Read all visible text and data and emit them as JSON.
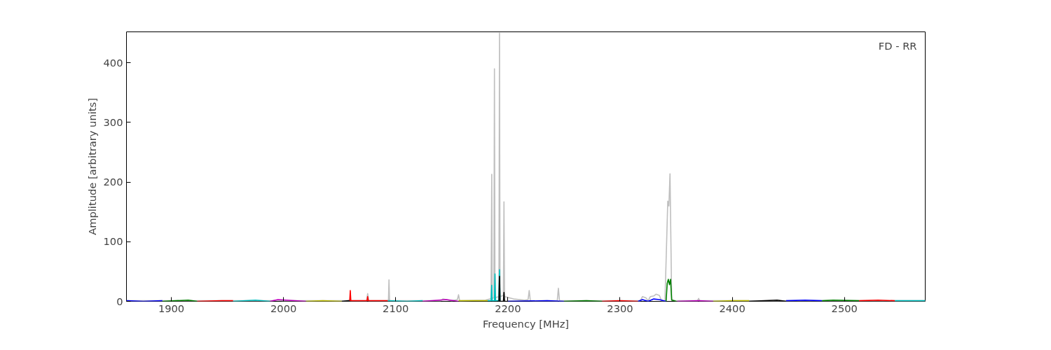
{
  "chart_data": {
    "type": "line",
    "xlabel": "Frequency [MHz]",
    "ylabel": "Amplitude [arbitrary units]",
    "annotations": [
      "FD - RR"
    ],
    "xlim": [
      1860,
      2572
    ],
    "ylim": [
      0,
      452
    ],
    "xticks": [
      1900,
      2000,
      2100,
      2200,
      2300,
      2400,
      2500
    ],
    "yticks": [
      0,
      100,
      200,
      300,
      400
    ],
    "grid": false,
    "line_style": "solid",
    "series": [
      {
        "color": "#bfbfbf",
        "x": [
          1860,
          1990,
          1995,
          2000,
          2074,
          2075,
          2076,
          2093.5,
          2094,
          2094.5,
          2140,
          2142,
          2150,
          2155,
          2156,
          2157,
          2180,
          2184,
          2185,
          2185.6,
          2186,
          2187.5,
          2188,
          2188.5,
          2192,
          2192.5,
          2193,
          2196,
          2196.5,
          2197,
          2205,
          2215,
          2218,
          2219,
          2220,
          2244,
          2245,
          2246,
          2318,
          2320,
          2323,
          2325,
          2327,
          2330,
          2332,
          2335,
          2337,
          2340,
          2341.5,
          2342.5,
          2343.5,
          2344.5,
          2346,
          2350,
          2369,
          2370,
          2371,
          2572
        ],
        "values": [
          1,
          1,
          2,
          1,
          1,
          13,
          1,
          1,
          36,
          1,
          1,
          4,
          1,
          3,
          11,
          1,
          2,
          4,
          5,
          213,
          5,
          6,
          390,
          6,
          8,
          450,
          8,
          10,
          167,
          8,
          4,
          2,
          3,
          18,
          1,
          1,
          22,
          1,
          1,
          8,
          6,
          1,
          8,
          9,
          12,
          10,
          1,
          1,
          100,
          168,
          160,
          214,
          3,
          1,
          1,
          5,
          1,
          1
        ]
      },
      {
        "color": "#0000ff",
        "x": [
          1860,
          1875,
          1892
        ],
        "values": [
          1,
          0,
          1
        ]
      },
      {
        "color": "#008000",
        "x": [
          1892,
          1915,
          1923
        ],
        "values": [
          0,
          2,
          0
        ]
      },
      {
        "color": "#ff0000",
        "x": [
          1923,
          1945,
          1955
        ],
        "values": [
          0,
          1,
          1
        ]
      },
      {
        "color": "#00bfbf",
        "x": [
          1955,
          1975,
          1988
        ],
        "values": [
          0,
          2,
          0
        ]
      },
      {
        "color": "#bf00bf",
        "x": [
          1988,
          1995,
          2020
        ],
        "values": [
          0,
          3,
          0
        ]
      },
      {
        "color": "#bfbf00",
        "x": [
          2020,
          2035,
          2052
        ],
        "values": [
          0,
          1,
          0
        ]
      },
      {
        "color": "#000000",
        "x": [
          2052,
          2058,
          2060
        ],
        "values": [
          0,
          1,
          1
        ]
      },
      {
        "color": "#ff0000",
        "x": [
          2059,
          2059.5,
          2060,
          2074.5,
          2075,
          2075.5,
          2093
        ],
        "values": [
          1,
          18,
          1,
          1,
          8,
          1,
          1
        ]
      },
      {
        "color": "#00bfbf",
        "x": [
          2093,
          2110,
          2124
        ],
        "values": [
          1,
          0,
          1
        ]
      },
      {
        "color": "#bf00bf",
        "x": [
          2124,
          2145,
          2156
        ],
        "values": [
          0,
          3,
          0
        ]
      },
      {
        "color": "#bfbf00",
        "x": [
          2156,
          2170,
          2182
        ],
        "values": [
          1,
          1,
          1
        ]
      },
      {
        "color": "#00bfbf",
        "x": [
          2182,
          2185,
          2185.6,
          2186,
          2188,
          2188.5,
          2189,
          2192,
          2192.5,
          2193
        ],
        "values": [
          1,
          1,
          27,
          1,
          1,
          46,
          1,
          1,
          53,
          1
        ]
      },
      {
        "color": "#000000",
        "x": [
          2190,
          2192,
          2192.5,
          2193,
          2196,
          2196.5,
          2197,
          2200,
          2222
        ],
        "values": [
          0,
          0,
          42,
          0,
          0,
          15,
          0,
          0,
          0
        ]
      },
      {
        "color": "#0000ff",
        "x": [
          2200,
          2235,
          2250
        ],
        "values": [
          0,
          1,
          0
        ]
      },
      {
        "color": "#008000",
        "x": [
          2250,
          2270,
          2284
        ],
        "values": [
          0,
          1,
          0
        ]
      },
      {
        "color": "#ff0000",
        "x": [
          2284,
          2300,
          2316
        ],
        "values": [
          0,
          1,
          0
        ]
      },
      {
        "color": "#0000ff",
        "x": [
          2316,
          2320,
          2325,
          2330,
          2335,
          2341
        ],
        "values": [
          0,
          3,
          0,
          4,
          3,
          0
        ]
      },
      {
        "color": "#008000",
        "x": [
          2341,
          2342,
          2343,
          2344,
          2345,
          2346,
          2350
        ],
        "values": [
          0,
          30,
          37,
          28,
          37,
          2,
          0
        ]
      },
      {
        "color": "#bf00bf",
        "x": [
          2351,
          2370,
          2383
        ],
        "values": [
          0,
          1,
          0
        ]
      },
      {
        "color": "#bfbf00",
        "x": [
          2383,
          2400,
          2415
        ],
        "values": [
          0,
          1,
          1
        ]
      },
      {
        "color": "#000000",
        "x": [
          2415,
          2440,
          2448
        ],
        "values": [
          0,
          2,
          0
        ]
      },
      {
        "color": "#0000ff",
        "x": [
          2448,
          2465,
          2480
        ],
        "values": [
          1,
          2,
          1
        ]
      },
      {
        "color": "#008000",
        "x": [
          2480,
          2490,
          2513
        ],
        "values": [
          1,
          2,
          1
        ]
      },
      {
        "color": "#ff0000",
        "x": [
          2513,
          2530,
          2545
        ],
        "values": [
          1,
          2,
          1
        ]
      },
      {
        "color": "#00bfbf",
        "x": [
          2545,
          2560,
          2572
        ],
        "values": [
          1,
          1,
          1
        ]
      }
    ]
  }
}
